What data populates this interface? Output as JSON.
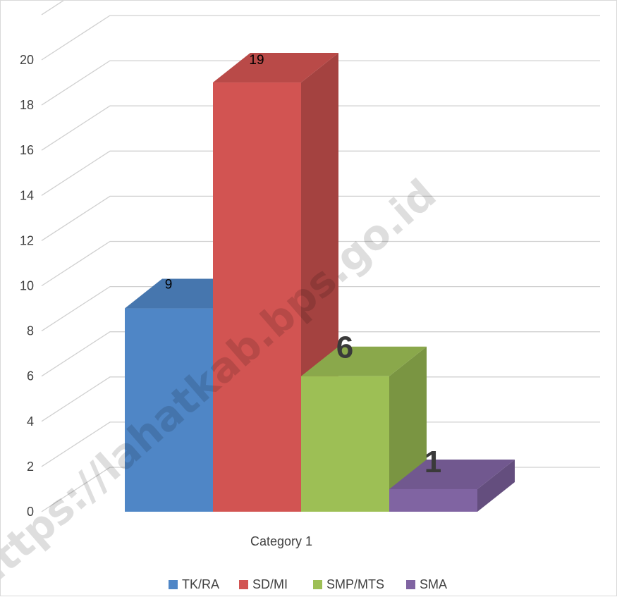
{
  "chart_data": {
    "type": "bar",
    "title": "",
    "xlabel": "",
    "ylabel": "",
    "categories": [
      "Category 1"
    ],
    "ylim": [
      0,
      20
    ],
    "ytick_step": 2,
    "grid": true,
    "legend_position": "bottom",
    "series": [
      {
        "name": "TK/RA",
        "values": [
          9
        ],
        "color": "#4F86C6",
        "data_label": "9"
      },
      {
        "name": "SD/MI",
        "values": [
          19
        ],
        "color": "#D25452",
        "data_label": "19"
      },
      {
        "name": "SMP/MTS",
        "values": [
          6
        ],
        "color": "#9DBF55",
        "data_label": "6"
      },
      {
        "name": "SMA",
        "values": [
          1
        ],
        "color": "#8064A2",
        "data_label": "1"
      }
    ]
  },
  "watermark": "https://lahatkab.bps.go.id"
}
